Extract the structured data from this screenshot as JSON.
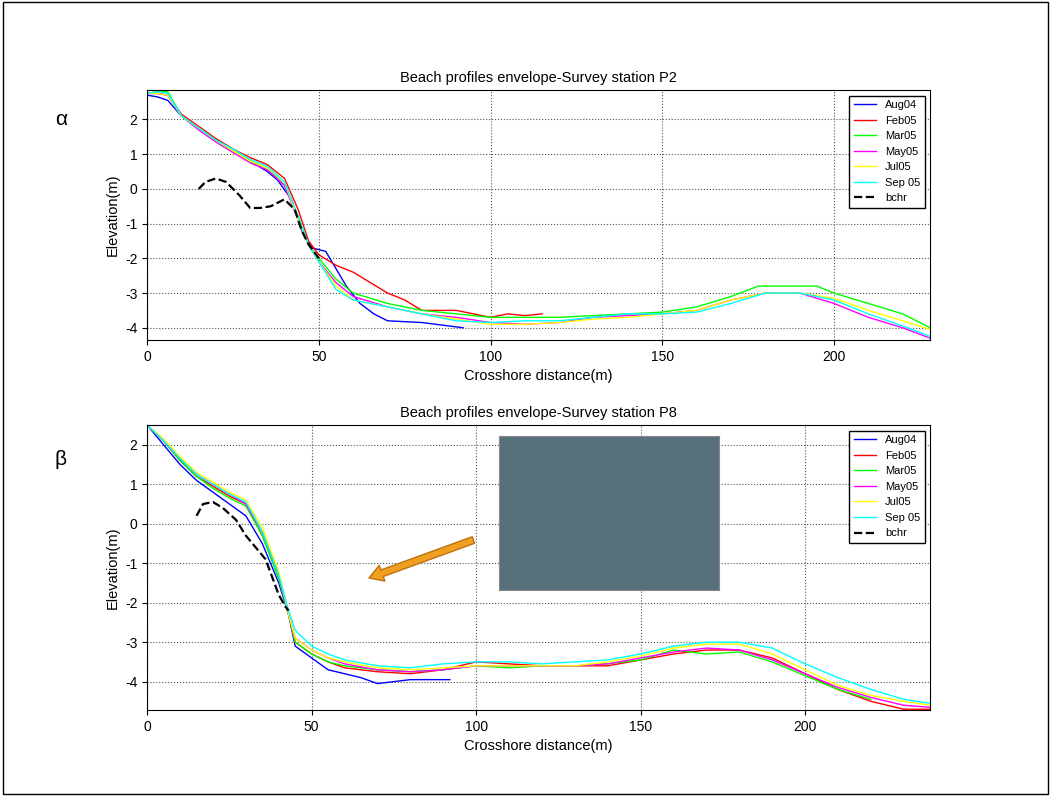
{
  "chart_data": [
    {
      "type": "line",
      "title": "Beach profiles envelope-Survey station P2",
      "x_label": "Crosshore distance(m)",
      "y_label": "Elevation(m)",
      "annotations": [
        "α"
      ],
      "xlim": [
        0,
        228
      ],
      "ylim": [
        -4.35,
        2.85
      ],
      "xticks": [
        0,
        50,
        100,
        150,
        200
      ],
      "yticks": [
        -4,
        -3,
        -2,
        -1,
        0,
        1,
        2
      ],
      "grid": true,
      "legend": "upper right",
      "series": [
        {
          "name": "Aug04",
          "color": "#0000ff",
          "line_style": "solid",
          "x": [
            0,
            3,
            6,
            10,
            15,
            20,
            25,
            30,
            35,
            38,
            42,
            45,
            48,
            52,
            55,
            58,
            62,
            66,
            70,
            80,
            92
          ],
          "values": [
            2.7,
            2.65,
            2.55,
            2.1,
            1.75,
            1.4,
            1.1,
            0.8,
            0.5,
            0.25,
            -0.3,
            -1.2,
            -1.7,
            -1.8,
            -2.3,
            -2.8,
            -3.3,
            -3.6,
            -3.8,
            -3.85,
            -4.0
          ]
        },
        {
          "name": "Feb05",
          "color": "#ff0000",
          "line_style": "solid",
          "x": [
            0,
            3,
            6,
            10,
            15,
            20,
            25,
            30,
            35,
            40,
            44,
            47,
            50,
            55,
            60,
            65,
            70,
            75,
            80,
            90,
            100,
            105,
            110,
            115
          ],
          "values": [
            2.75,
            2.75,
            2.7,
            2.15,
            1.8,
            1.45,
            1.15,
            0.9,
            0.7,
            0.3,
            -0.6,
            -1.5,
            -1.9,
            -2.2,
            -2.4,
            -2.7,
            -3.0,
            -3.2,
            -3.5,
            -3.5,
            -3.7,
            -3.6,
            -3.65,
            -3.6
          ]
        },
        {
          "name": "Mar05",
          "color": "#00ff00",
          "line_style": "solid",
          "x": [
            0,
            3,
            6,
            10,
            15,
            20,
            25,
            30,
            35,
            40,
            44,
            47,
            50,
            55,
            60,
            70,
            80,
            90,
            100,
            110,
            120,
            130,
            140,
            150,
            160,
            170,
            178,
            185,
            195,
            200,
            210,
            220,
            228
          ],
          "values": [
            2.75,
            2.8,
            2.8,
            2.1,
            1.75,
            1.4,
            1.1,
            0.8,
            0.6,
            0.1,
            -0.8,
            -1.6,
            -2.0,
            -2.6,
            -3.0,
            -3.3,
            -3.5,
            -3.6,
            -3.7,
            -3.7,
            -3.7,
            -3.65,
            -3.6,
            -3.55,
            -3.4,
            -3.1,
            -2.8,
            -2.8,
            -2.8,
            -3.0,
            -3.3,
            -3.6,
            -4.0
          ]
        },
        {
          "name": "May05",
          "color": "#ff00ff",
          "line_style": "solid",
          "x": [
            0,
            3,
            6,
            10,
            15,
            20,
            25,
            30,
            35,
            40,
            44,
            47,
            50,
            55,
            60,
            70,
            80,
            90,
            100,
            110,
            120,
            130,
            140,
            150,
            160,
            170,
            180,
            190,
            200,
            210,
            220,
            228
          ],
          "values": [
            2.75,
            2.75,
            2.7,
            2.1,
            1.7,
            1.35,
            1.05,
            0.75,
            0.55,
            0.1,
            -0.9,
            -1.6,
            -2.1,
            -2.7,
            -3.1,
            -3.4,
            -3.6,
            -3.7,
            -3.85,
            -3.9,
            -3.85,
            -3.7,
            -3.65,
            -3.6,
            -3.5,
            -3.2,
            -3.0,
            -3.0,
            -3.3,
            -3.7,
            -4.0,
            -4.3
          ]
        },
        {
          "name": "Jul05",
          "color": "#ffff00",
          "line_style": "solid",
          "x": [
            0,
            3,
            6,
            10,
            15,
            20,
            25,
            30,
            35,
            40,
            44,
            47,
            50,
            55,
            60,
            70,
            80,
            90,
            100,
            110,
            120,
            130,
            140,
            150,
            160,
            170,
            180,
            190,
            200,
            210,
            220,
            228
          ],
          "values": [
            2.75,
            2.75,
            2.7,
            2.1,
            1.75,
            1.4,
            1.1,
            0.8,
            0.6,
            0.2,
            -0.9,
            -1.6,
            -2.1,
            -2.8,
            -3.2,
            -3.4,
            -3.6,
            -3.75,
            -3.9,
            -3.9,
            -3.85,
            -3.75,
            -3.7,
            -3.6,
            -3.5,
            -3.2,
            -3.0,
            -3.0,
            -3.15,
            -3.5,
            -3.8,
            -4.05
          ]
        },
        {
          "name": "Sep 05",
          "color": "#00ffff",
          "line_style": "solid",
          "x": [
            0,
            3,
            6,
            10,
            15,
            20,
            25,
            30,
            35,
            40,
            44,
            47,
            50,
            55,
            60,
            70,
            80,
            90,
            100,
            110,
            120,
            130,
            140,
            150,
            160,
            170,
            180,
            190,
            200,
            210,
            220,
            228
          ],
          "values": [
            2.75,
            2.8,
            2.75,
            2.1,
            1.75,
            1.4,
            1.15,
            0.85,
            0.65,
            0.2,
            -0.8,
            -1.6,
            -2.1,
            -2.9,
            -3.2,
            -3.4,
            -3.6,
            -3.8,
            -3.85,
            -3.8,
            -3.8,
            -3.7,
            -3.6,
            -3.6,
            -3.55,
            -3.3,
            -3.0,
            -3.0,
            -3.2,
            -3.6,
            -3.95,
            -4.25
          ]
        },
        {
          "name": "bchr",
          "color": "#000000",
          "line_style": "dashed",
          "x": [
            15,
            17,
            20,
            23,
            27,
            30,
            33,
            36,
            40,
            43,
            45,
            47,
            50
          ],
          "values": [
            0.0,
            0.2,
            0.3,
            0.2,
            -0.2,
            -0.55,
            -0.55,
            -0.5,
            -0.3,
            -0.6,
            -1.2,
            -1.6,
            -2.0
          ]
        }
      ]
    },
    {
      "type": "line",
      "title": "Beach profiles envelope-Survey station P8",
      "x_label": "Crosshore distance(m)",
      "y_label": "Elevation(m)",
      "annotations": [
        "β"
      ],
      "xlim": [
        0,
        238
      ],
      "ylim": [
        -4.72,
        2.5
      ],
      "xticks": [
        0,
        50,
        100,
        150,
        200
      ],
      "yticks": [
        -4,
        -3,
        -2,
        -1,
        0,
        1,
        2
      ],
      "grid": true,
      "legend": "upper right",
      "series": [
        {
          "name": "Aug04",
          "color": "#0000ff",
          "line_style": "solid",
          "x": [
            0,
            5,
            10,
            15,
            20,
            25,
            30,
            35,
            40,
            43,
            45,
            50,
            55,
            60,
            65,
            70,
            75,
            80,
            92
          ],
          "values": [
            2.5,
            2.0,
            1.5,
            1.1,
            0.8,
            0.5,
            0.2,
            -0.5,
            -1.5,
            -2.3,
            -3.1,
            -3.4,
            -3.7,
            -3.8,
            -3.9,
            -4.05,
            -4.0,
            -3.95,
            -3.95
          ]
        },
        {
          "name": "Feb05",
          "color": "#ff0000",
          "line_style": "solid",
          "x": [
            0,
            5,
            10,
            15,
            20,
            25,
            30,
            35,
            40,
            43,
            45,
            50,
            55,
            60,
            70,
            80,
            90,
            100,
            110,
            120,
            130,
            140,
            150,
            160,
            170,
            180,
            190,
            200,
            210,
            220,
            230,
            238
          ],
          "values": [
            2.5,
            2.1,
            1.6,
            1.2,
            0.95,
            0.7,
            0.5,
            -0.3,
            -1.3,
            -2.3,
            -3.0,
            -3.3,
            -3.5,
            -3.65,
            -3.75,
            -3.8,
            -3.7,
            -3.5,
            -3.55,
            -3.6,
            -3.6,
            -3.6,
            -3.45,
            -3.3,
            -3.2,
            -3.2,
            -3.4,
            -3.8,
            -4.2,
            -4.5,
            -4.7,
            -4.7
          ]
        },
        {
          "name": "Mar05",
          "color": "#00ff00",
          "line_style": "solid",
          "x": [
            0,
            5,
            10,
            15,
            20,
            25,
            30,
            35,
            40,
            43,
            45,
            50,
            55,
            60,
            70,
            80,
            90,
            100,
            110,
            120,
            130,
            140,
            150,
            160,
            170,
            180,
            190,
            200,
            210,
            220
          ],
          "values": [
            2.5,
            2.1,
            1.6,
            1.2,
            0.9,
            0.65,
            0.45,
            -0.3,
            -1.4,
            -2.3,
            -3.0,
            -3.3,
            -3.5,
            -3.6,
            -3.7,
            -3.75,
            -3.7,
            -3.6,
            -3.65,
            -3.6,
            -3.6,
            -3.55,
            -3.45,
            -3.2,
            -3.3,
            -3.25,
            -3.5,
            -3.85,
            -4.2,
            -4.45
          ]
        },
        {
          "name": "May05",
          "color": "#ff00ff",
          "line_style": "solid",
          "x": [
            0,
            5,
            10,
            15,
            20,
            25,
            30,
            35,
            40,
            43,
            45,
            50,
            55,
            60,
            70,
            80,
            90,
            100,
            110,
            120,
            130,
            140,
            150,
            160,
            170,
            180,
            190,
            200,
            210,
            220,
            230,
            238
          ],
          "values": [
            2.5,
            2.1,
            1.65,
            1.25,
            1.0,
            0.75,
            0.5,
            -0.2,
            -1.3,
            -2.3,
            -2.9,
            -3.2,
            -3.4,
            -3.55,
            -3.7,
            -3.75,
            -3.7,
            -3.6,
            -3.6,
            -3.6,
            -3.6,
            -3.55,
            -3.4,
            -3.25,
            -3.15,
            -3.2,
            -3.45,
            -3.8,
            -4.15,
            -4.4,
            -4.6,
            -4.65
          ]
        },
        {
          "name": "Jul05",
          "color": "#ffff00",
          "line_style": "solid",
          "x": [
            0,
            5,
            10,
            15,
            20,
            25,
            30,
            35,
            40,
            43,
            45,
            50,
            55,
            60,
            70,
            80,
            90,
            100,
            110,
            120,
            130,
            140,
            150,
            160,
            170,
            180,
            190,
            200,
            210,
            220,
            230,
            238
          ],
          "values": [
            2.5,
            2.15,
            1.7,
            1.3,
            1.05,
            0.8,
            0.6,
            -0.1,
            -1.2,
            -2.3,
            -2.9,
            -3.2,
            -3.4,
            -3.5,
            -3.65,
            -3.7,
            -3.65,
            -3.6,
            -3.6,
            -3.6,
            -3.6,
            -3.5,
            -3.35,
            -3.15,
            -3.05,
            -3.05,
            -3.3,
            -3.7,
            -4.1,
            -4.35,
            -4.5,
            -4.6
          ]
        },
        {
          "name": "Sep 05",
          "color": "#00ffff",
          "line_style": "solid",
          "x": [
            0,
            5,
            10,
            15,
            20,
            25,
            30,
            35,
            40,
            43,
            45,
            50,
            55,
            60,
            70,
            80,
            90,
            100,
            110,
            120,
            130,
            140,
            150,
            160,
            170,
            180,
            190,
            200,
            210,
            220,
            230,
            238
          ],
          "values": [
            2.5,
            2.1,
            1.65,
            1.25,
            1.0,
            0.75,
            0.55,
            -0.2,
            -1.3,
            -2.2,
            -2.7,
            -3.1,
            -3.3,
            -3.45,
            -3.6,
            -3.65,
            -3.55,
            -3.5,
            -3.5,
            -3.55,
            -3.5,
            -3.45,
            -3.3,
            -3.1,
            -3.0,
            -3.0,
            -3.15,
            -3.55,
            -3.9,
            -4.2,
            -4.45,
            -4.55
          ]
        },
        {
          "name": "bchr",
          "color": "#000000",
          "line_style": "dashed",
          "x": [
            15,
            17,
            20,
            23,
            27,
            30,
            33,
            36,
            40,
            42,
            43
          ],
          "values": [
            0.2,
            0.5,
            0.55,
            0.4,
            0.1,
            -0.3,
            -0.6,
            -0.9,
            -1.8,
            -2.1,
            -2.2
          ]
        }
      ]
    }
  ]
}
